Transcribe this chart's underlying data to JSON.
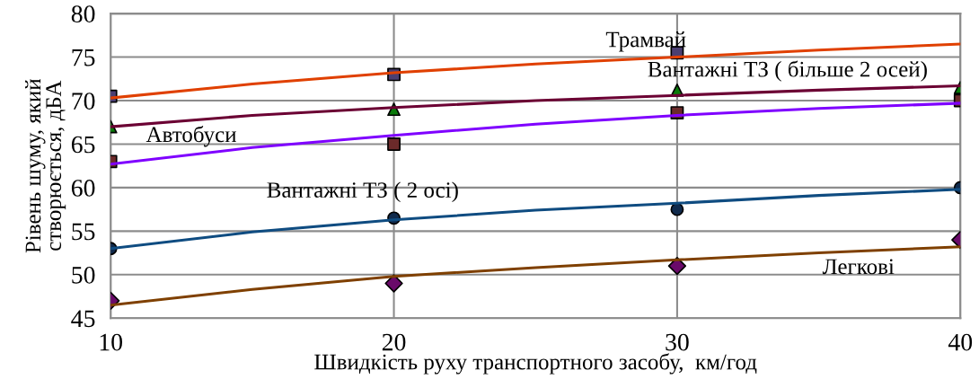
{
  "chart_data": {
    "type": "scatter",
    "xlabel": "Швидкість руху транспортного засобу,  км/год",
    "ylabel": "Рівень шуму, який\nстворюється, дБА",
    "xlim": [
      10,
      40
    ],
    "xticks": [
      10,
      20,
      30,
      40
    ],
    "ylim": [
      45,
      80
    ],
    "yticks": [
      45,
      50,
      55,
      60,
      65,
      70,
      75,
      80
    ],
    "grid": true,
    "legend": false,
    "series": [
      {
        "type": "line",
        "name": "Трамвай",
        "marker": "none",
        "color": "#e04000",
        "x": [
          10,
          15,
          20,
          25,
          30,
          35,
          40
        ],
        "values": [
          70.3,
          71.9,
          73.2,
          74.2,
          75.0,
          75.8,
          76.5
        ]
      },
      {
        "marker": "square",
        "color": "#4b3f72",
        "x": [
          10,
          20,
          30
        ],
        "values": [
          70.5,
          73,
          75.5
        ]
      },
      {
        "type": "line",
        "name": "Вантажні ТЗ ( більше 2 осей)",
        "marker": "none",
        "color": "#6b0033",
        "x": [
          10,
          15,
          20,
          25,
          30,
          35,
          40
        ],
        "values": [
          67,
          68.3,
          69.2,
          70,
          70.6,
          71.2,
          71.7
        ]
      },
      {
        "marker": "triangle",
        "color": "#0a7a0a",
        "x": [
          10,
          20,
          30,
          40
        ],
        "values": [
          67,
          69,
          71.2,
          71.5
        ]
      },
      {
        "type": "line",
        "name": "Автобуси",
        "marker": "none",
        "color": "#7f00ff",
        "x": [
          10,
          15,
          20,
          25,
          30,
          35,
          40
        ],
        "values": [
          62.7,
          64.6,
          66,
          67.3,
          68.3,
          69.1,
          69.7
        ]
      },
      {
        "marker": "square",
        "color": "#6b2a2a",
        "x": [
          10,
          20,
          30,
          40
        ],
        "values": [
          63,
          65,
          68.6,
          70
        ]
      },
      {
        "type": "line",
        "name": "Вантажні ТЗ ( 2 осі)",
        "marker": "none",
        "color": "#0f4c81",
        "x": [
          10,
          15,
          20,
          25,
          30,
          35,
          40
        ],
        "values": [
          53,
          54.9,
          56.3,
          57.4,
          58.2,
          59.1,
          59.8
        ]
      },
      {
        "marker": "circle",
        "color": "#102a4c",
        "x": [
          10,
          20,
          30,
          40
        ],
        "values": [
          53,
          56.5,
          57.5,
          60
        ]
      },
      {
        "type": "line",
        "name": "Легкові",
        "marker": "none",
        "color": "#7f4000",
        "x": [
          10,
          15,
          20,
          25,
          30,
          35,
          40
        ],
        "values": [
          46.5,
          48.3,
          49.8,
          50.8,
          51.7,
          52.5,
          53.2
        ]
      },
      {
        "marker": "diamond",
        "color": "#6a0a6a",
        "x": [
          10,
          20,
          30,
          40
        ],
        "values": [
          47,
          49,
          51,
          54
        ]
      }
    ]
  }
}
